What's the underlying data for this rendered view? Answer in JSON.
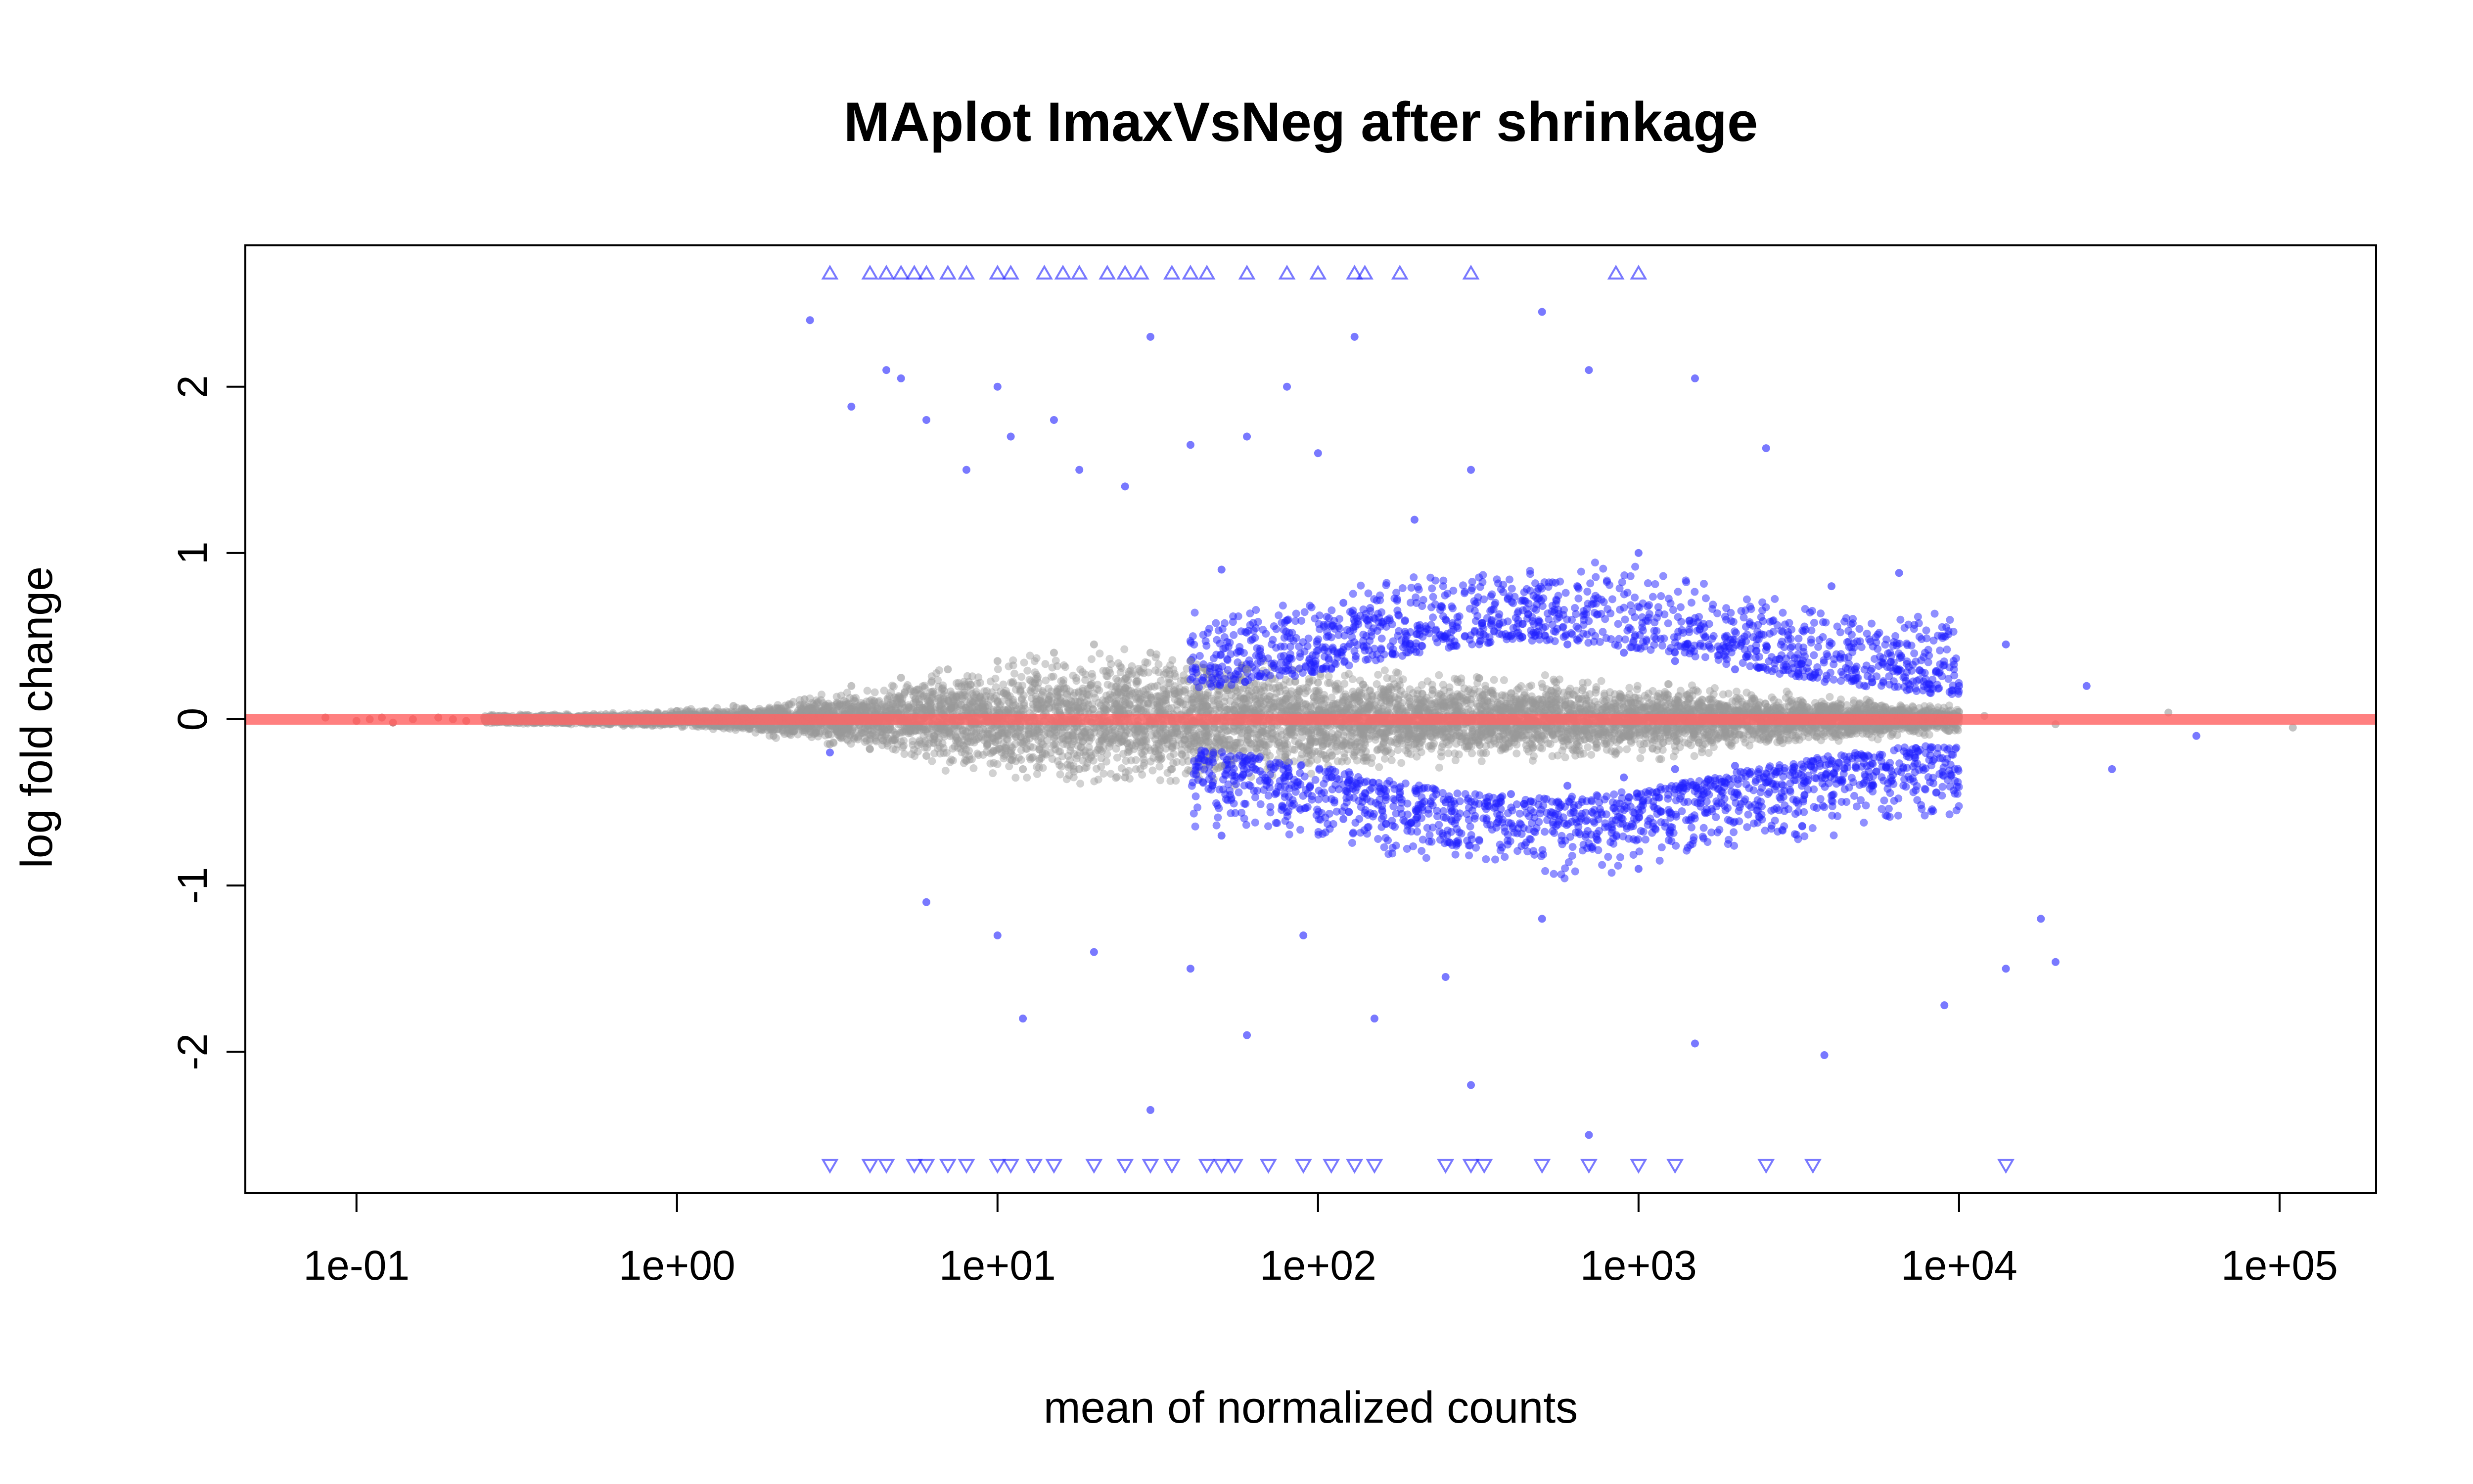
{
  "chart_data": {
    "type": "scatter",
    "title": "MAplot ImaxVsNeg after shrinkage",
    "xlabel": "mean of normalized counts",
    "ylabel": "log fold change",
    "x_scale": "log10",
    "xlim": [
      0.045,
      200000
    ],
    "ylim": [
      -2.85,
      2.85
    ],
    "x_ticks": [
      {
        "value": 0.1,
        "label": "1e-01"
      },
      {
        "value": 1,
        "label": "1e+00"
      },
      {
        "value": 10,
        "label": "1e+01"
      },
      {
        "value": 100,
        "label": "1e+02"
      },
      {
        "value": 1000,
        "label": "1e+03"
      },
      {
        "value": 10000,
        "label": "1e+04"
      },
      {
        "value": 100000,
        "label": "1e+05"
      }
    ],
    "y_ticks": [
      {
        "value": -2,
        "label": "-2"
      },
      {
        "value": -1,
        "label": "-1"
      },
      {
        "value": 0,
        "label": "0"
      },
      {
        "value": 1,
        "label": "1"
      },
      {
        "value": 2,
        "label": "2"
      }
    ],
    "reference_line": {
      "y": 0,
      "color": "#ff6464"
    },
    "grid": false,
    "legend": "none",
    "series": [
      {
        "color": "#9a9a9a",
        "marker": "circle",
        "points": [
          [
            0.25,
            0.01
          ],
          [
            0.3,
            -0.01
          ],
          [
            0.4,
            0.02
          ],
          [
            0.5,
            -0.02
          ],
          [
            0.6,
            0.03
          ],
          [
            0.8,
            -0.03
          ],
          [
            1.0,
            0.05
          ],
          [
            1.2,
            -0.04
          ],
          [
            1.5,
            0.08
          ],
          [
            2.0,
            -0.1
          ],
          [
            2.5,
            0.12
          ],
          [
            3,
            -0.15
          ],
          [
            3.5,
            0.2
          ],
          [
            4,
            -0.18
          ],
          [
            5,
            0.25
          ],
          [
            6,
            -0.22
          ],
          [
            7,
            0.3
          ],
          [
            8,
            -0.25
          ],
          [
            10,
            0.35
          ],
          [
            12,
            -0.3
          ],
          [
            15,
            0.4
          ],
          [
            18,
            -0.3
          ],
          [
            20,
            0.45
          ],
          [
            25,
            -0.35
          ],
          [
            30,
            0.4
          ],
          [
            35,
            -0.3
          ],
          [
            40,
            0.35
          ],
          [
            50,
            -0.28
          ],
          [
            60,
            0.3
          ],
          [
            80,
            -0.25
          ],
          [
            100,
            0.22
          ],
          [
            130,
            -0.2
          ],
          [
            160,
            0.18
          ],
          [
            200,
            -0.15
          ],
          [
            300,
            0.12
          ],
          [
            500,
            -0.1
          ],
          [
            800,
            0.08
          ],
          [
            1000,
            -0.06
          ],
          [
            2000,
            0.05
          ],
          [
            3000,
            -0.04
          ],
          [
            5000,
            0.03
          ],
          [
            8000,
            -0.05
          ],
          [
            12000,
            0.02
          ],
          [
            20000,
            -0.03
          ],
          [
            45000,
            0.04
          ],
          [
            110000,
            -0.05
          ]
        ]
      },
      {
        "color": "#2020ff",
        "marker": "circle",
        "points": [
          [
            2.6,
            2.4
          ],
          [
            3.5,
            1.88
          ],
          [
            4.5,
            2.1
          ],
          [
            5,
            2.05
          ],
          [
            6,
            1.8
          ],
          [
            8,
            1.5
          ],
          [
            10,
            2.0
          ],
          [
            11,
            1.7
          ],
          [
            15,
            1.8
          ],
          [
            18,
            1.5
          ],
          [
            25,
            1.4
          ],
          [
            30,
            2.3
          ],
          [
            40,
            1.65
          ],
          [
            60,
            1.7
          ],
          [
            80,
            2.0
          ],
          [
            100,
            1.6
          ],
          [
            130,
            2.3
          ],
          [
            200,
            1.2
          ],
          [
            300,
            1.5
          ],
          [
            500,
            2.45
          ],
          [
            700,
            2.1
          ],
          [
            1000,
            1.0
          ],
          [
            1500,
            2.05
          ],
          [
            2500,
            1.63
          ],
          [
            4000,
            0.8
          ],
          [
            6500,
            0.88
          ],
          [
            10000,
            0.2
          ],
          [
            14000,
            0.45
          ],
          [
            25000,
            0.2
          ],
          [
            50,
            0.9
          ],
          [
            120,
            0.7
          ],
          [
            250,
            0.6
          ],
          [
            400,
            0.5
          ],
          [
            600,
            0.45
          ],
          [
            900,
            0.4
          ],
          [
            1300,
            0.35
          ],
          [
            2000,
            0.3
          ],
          [
            3500,
            0.25
          ],
          [
            7000,
            0.18
          ],
          [
            3,
            -0.2
          ],
          [
            6,
            -1.1
          ],
          [
            10,
            -1.3
          ],
          [
            12,
            -1.8
          ],
          [
            20,
            -1.4
          ],
          [
            30,
            -2.35
          ],
          [
            40,
            -1.5
          ],
          [
            60,
            -1.9
          ],
          [
            90,
            -1.3
          ],
          [
            150,
            -1.8
          ],
          [
            250,
            -1.55
          ],
          [
            300,
            -2.2
          ],
          [
            500,
            -1.2
          ],
          [
            700,
            -2.5
          ],
          [
            1000,
            -0.9
          ],
          [
            1500,
            -1.95
          ],
          [
            3800,
            -2.02
          ],
          [
            9000,
            -1.72
          ],
          [
            14000,
            -1.5
          ],
          [
            18000,
            -1.2
          ],
          [
            20000,
            -1.46
          ],
          [
            50,
            -0.7
          ],
          [
            120,
            -0.6
          ],
          [
            250,
            -0.5
          ],
          [
            400,
            -0.45
          ],
          [
            600,
            -0.4
          ],
          [
            900,
            -0.35
          ],
          [
            1300,
            -0.3
          ],
          [
            2000,
            -0.28
          ],
          [
            3500,
            -0.25
          ],
          [
            7000,
            -0.2
          ],
          [
            30000,
            -0.3
          ],
          [
            55000,
            -0.1
          ]
        ]
      },
      {
        "color": "#2020ff",
        "marker": "triangle-up",
        "points": [
          [
            3,
            2.68
          ],
          [
            4,
            2.68
          ],
          [
            4.5,
            2.68
          ],
          [
            5,
            2.68
          ],
          [
            5.5,
            2.68
          ],
          [
            6,
            2.68
          ],
          [
            7,
            2.68
          ],
          [
            8,
            2.68
          ],
          [
            10,
            2.68
          ],
          [
            11,
            2.68
          ],
          [
            14,
            2.68
          ],
          [
            16,
            2.68
          ],
          [
            18,
            2.68
          ],
          [
            22,
            2.68
          ],
          [
            25,
            2.68
          ],
          [
            28,
            2.68
          ],
          [
            35,
            2.68
          ],
          [
            40,
            2.68
          ],
          [
            45,
            2.68
          ],
          [
            60,
            2.68
          ],
          [
            80,
            2.68
          ],
          [
            100,
            2.68
          ],
          [
            130,
            2.68
          ],
          [
            140,
            2.68
          ],
          [
            180,
            2.68
          ],
          [
            300,
            2.68
          ],
          [
            850,
            2.68
          ],
          [
            1000,
            2.68
          ]
        ]
      },
      {
        "color": "#2020ff",
        "marker": "triangle-down",
        "points": [
          [
            3,
            -2.68
          ],
          [
            4,
            -2.68
          ],
          [
            4.5,
            -2.68
          ],
          [
            5.5,
            -2.68
          ],
          [
            6,
            -2.68
          ],
          [
            7,
            -2.68
          ],
          [
            8,
            -2.68
          ],
          [
            10,
            -2.68
          ],
          [
            11,
            -2.68
          ],
          [
            13,
            -2.68
          ],
          [
            15,
            -2.68
          ],
          [
            20,
            -2.68
          ],
          [
            25,
            -2.68
          ],
          [
            30,
            -2.68
          ],
          [
            35,
            -2.68
          ],
          [
            45,
            -2.68
          ],
          [
            50,
            -2.68
          ],
          [
            55,
            -2.68
          ],
          [
            70,
            -2.68
          ],
          [
            90,
            -2.68
          ],
          [
            110,
            -2.68
          ],
          [
            130,
            -2.68
          ],
          [
            150,
            -2.68
          ],
          [
            250,
            -2.68
          ],
          [
            300,
            -2.68
          ],
          [
            330,
            -2.68
          ],
          [
            500,
            -2.68
          ],
          [
            700,
            -2.68
          ],
          [
            1000,
            -2.68
          ],
          [
            1300,
            -2.68
          ],
          [
            2500,
            -2.68
          ],
          [
            3500,
            -2.68
          ],
          [
            14000,
            -2.68
          ]
        ]
      },
      {
        "color": "#b02020",
        "marker": "circle",
        "points": [
          [
            0.08,
            0.01
          ],
          [
            0.1,
            -0.01
          ],
          [
            0.11,
            0.0
          ],
          [
            0.12,
            0.01
          ],
          [
            0.13,
            -0.02
          ],
          [
            0.15,
            0.0
          ],
          [
            0.18,
            0.01
          ],
          [
            0.2,
            0.0
          ],
          [
            0.22,
            -0.01
          ]
        ]
      }
    ]
  }
}
